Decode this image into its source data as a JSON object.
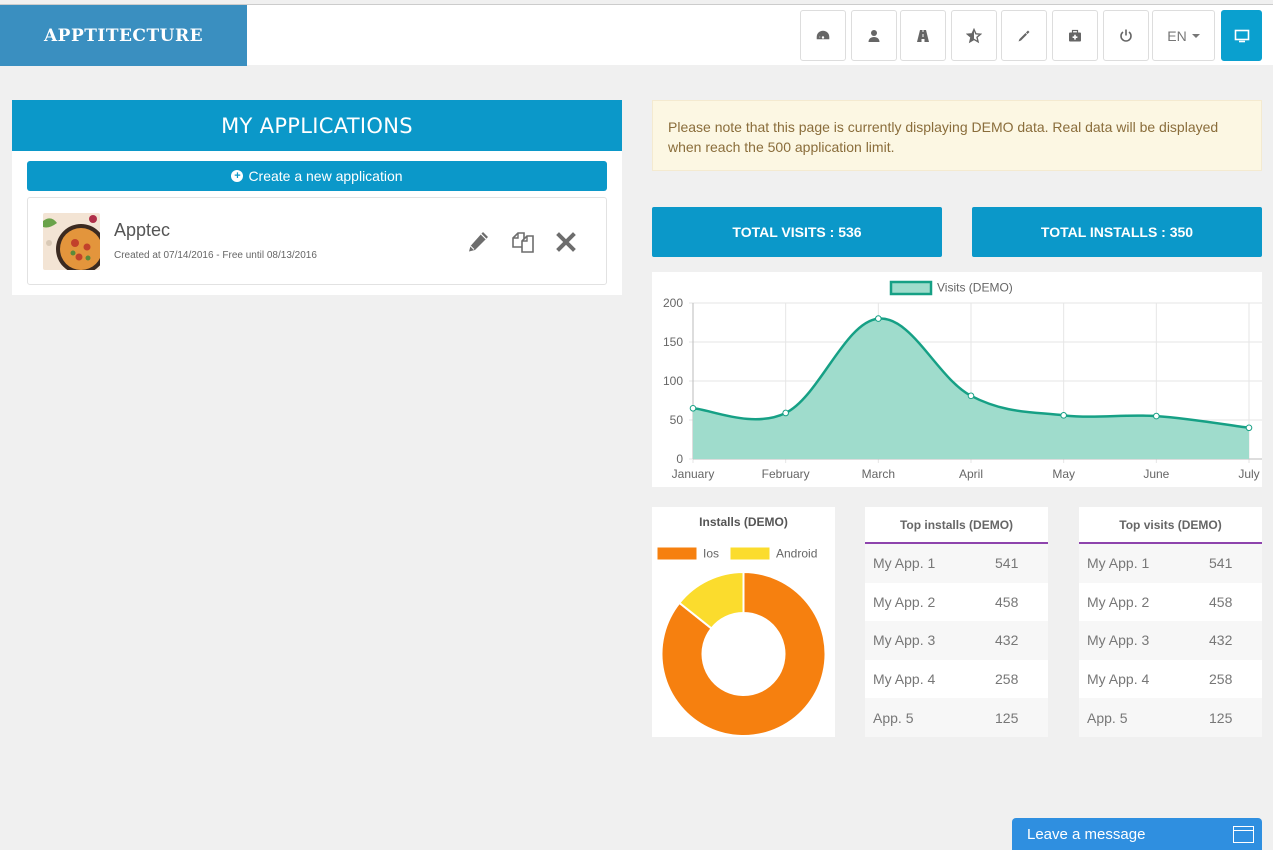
{
  "brand": "APPTITECTURE",
  "nav": {
    "icons": [
      "dashboard-icon",
      "user-icon",
      "road-icon",
      "star-icon",
      "eyedropper-icon",
      "medkit-icon",
      "power-icon"
    ],
    "language": "EN",
    "display_icon": "desktop-icon"
  },
  "apps_panel": {
    "title": "MY APPLICATIONS",
    "create_label": "Create a new application",
    "apps": [
      {
        "name": "Apptec",
        "meta": "Created at 07/14/2016 - Free until 08/13/2016"
      }
    ]
  },
  "notice": "Please note that this page is currently displaying DEMO data. Real data will be displayed when reach the 500 application limit.",
  "stats": {
    "visits": "TOTAL VISITS : 536",
    "installs": "TOTAL INSTALLS : 350"
  },
  "chart_data": [
    {
      "type": "area",
      "title": "",
      "categories": [
        "January",
        "February",
        "March",
        "April",
        "May",
        "June",
        "July"
      ],
      "series": [
        {
          "name": "Visits (DEMO)",
          "values": [
            65,
            59,
            180,
            81,
            56,
            55,
            40
          ]
        }
      ],
      "ylim": [
        0,
        200
      ],
      "yticks": [
        0,
        50,
        100,
        150,
        200
      ],
      "grid": true,
      "legend": "top",
      "colors": {
        "line": "#16a085",
        "fill": "#9fdccc"
      }
    },
    {
      "type": "pie",
      "title": "Installs (DEMO)",
      "categories": [
        "Ios",
        "Android"
      ],
      "values": [
        300,
        50
      ],
      "legend": "top",
      "colors": [
        "#f6800f",
        "#fbdc2d"
      ]
    }
  ],
  "top_installs": {
    "title": "Top installs (DEMO)",
    "rows": [
      {
        "name": "My App. 1",
        "value": "541"
      },
      {
        "name": "My App. 2",
        "value": "458"
      },
      {
        "name": "My App. 3",
        "value": "432"
      },
      {
        "name": "My App. 4",
        "value": "258"
      },
      {
        "name": "App. 5",
        "value": "125"
      }
    ]
  },
  "top_visits": {
    "title": "Top visits (DEMO)",
    "rows": [
      {
        "name": "My App. 1",
        "value": "541"
      },
      {
        "name": "My App. 2",
        "value": "458"
      },
      {
        "name": "My App. 3",
        "value": "432"
      },
      {
        "name": "My App. 4",
        "value": "258"
      },
      {
        "name": "App. 5",
        "value": "125"
      }
    ]
  },
  "chat_label": "Leave a message",
  "colors": {
    "primary": "#0b98c9",
    "brand": "#3a8fc0",
    "notice_bg": "#fcf7e3",
    "table_accent": "#8e44ad",
    "chat": "#2f8fe0"
  }
}
